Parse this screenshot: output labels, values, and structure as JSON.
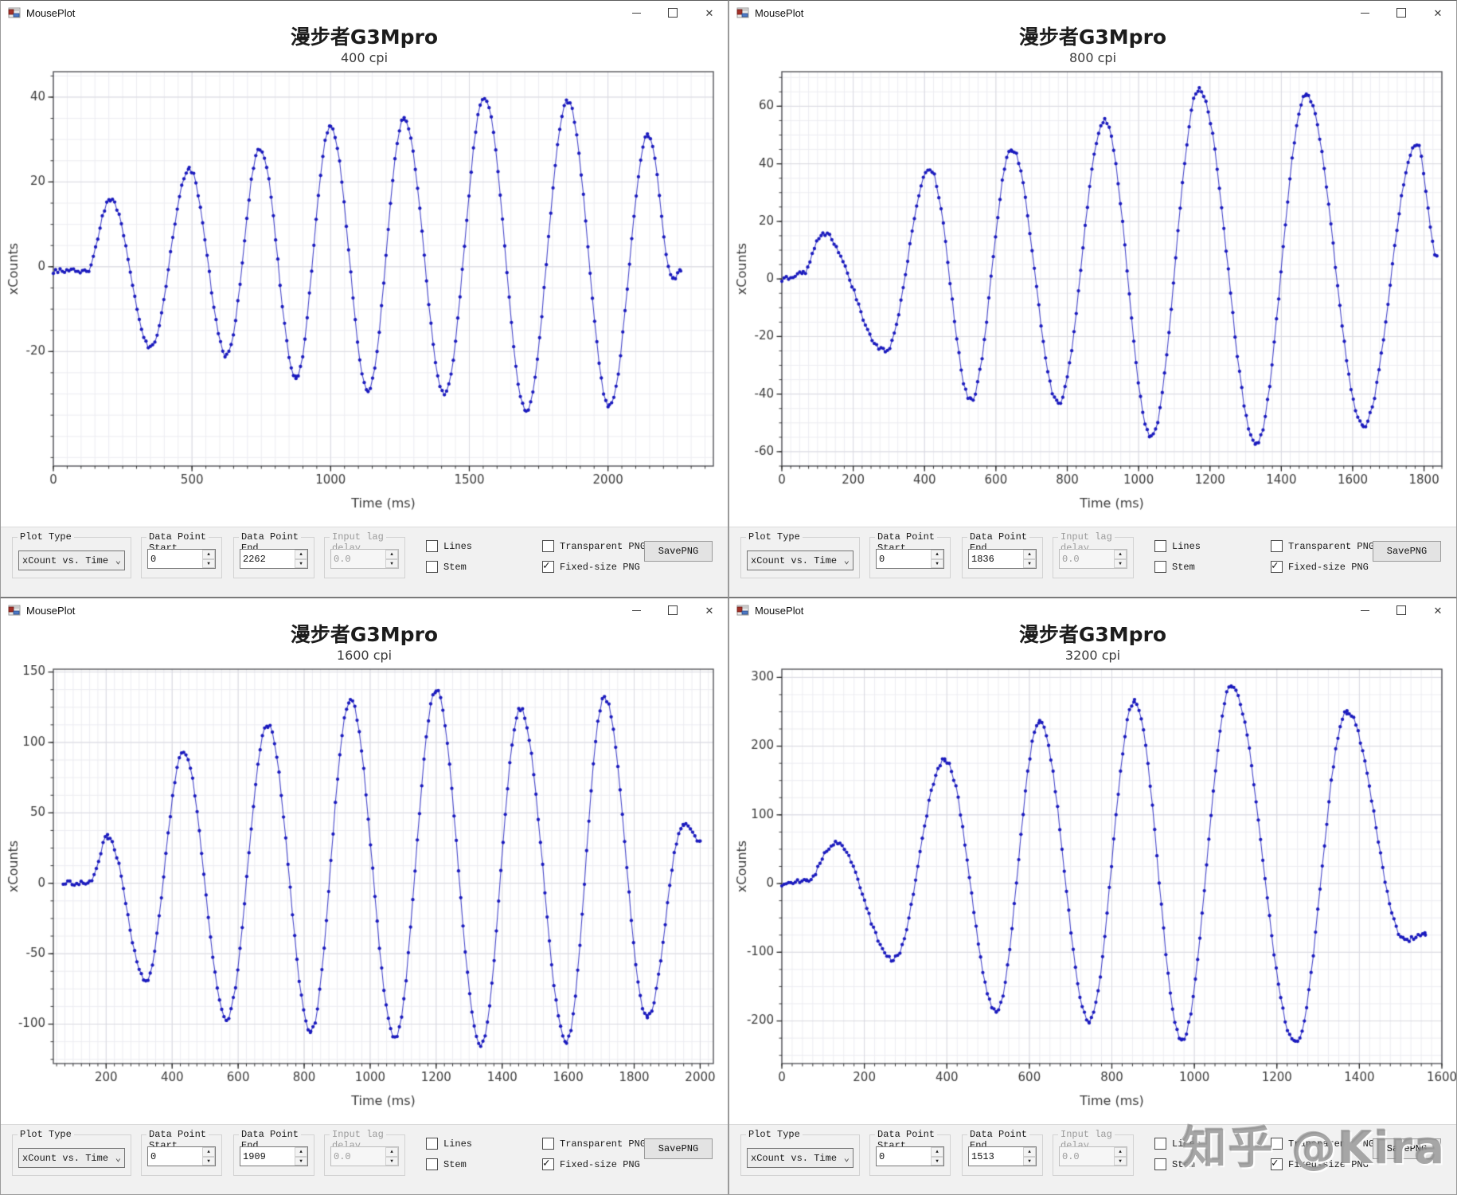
{
  "watermark": "知乎 @Kira",
  "toolbar": {
    "plot_type": {
      "label": "Plot Type",
      "value": "xCount vs. Time"
    },
    "data_point_start": {
      "label_line1": "Data Point",
      "label_line2": "Start"
    },
    "data_point_end": {
      "label_line1": "Data Point",
      "label_line2": "End"
    },
    "input_lag": {
      "label_line1": "Input lag",
      "label_line2": "delay"
    },
    "checkbox_lines": {
      "label": "Lines",
      "checked": false
    },
    "checkbox_stem": {
      "label": "Stem",
      "checked": false
    },
    "checkbox_transparent_png": {
      "label": "Transparent PNG",
      "checked": false
    },
    "checkbox_fixed_size_png": {
      "label": "Fixed-size PNG",
      "checked": true
    },
    "save_button": "SavePNG"
  },
  "windows": [
    {
      "title": "MousePlot",
      "data_point_start": "0",
      "data_point_end": "2262",
      "input_lag": "0.0"
    },
    {
      "title": "MousePlot",
      "data_point_start": "0",
      "data_point_end": "1836",
      "input_lag": "0.0"
    },
    {
      "title": "MousePlot",
      "data_point_start": "0",
      "data_point_end": "1909",
      "input_lag": "0.0"
    },
    {
      "title": "MousePlot",
      "data_point_start": "0",
      "data_point_end": "1513",
      "input_lag": "0.0"
    }
  ],
  "chart_data": [
    {
      "type": "scatter",
      "title": "漫步者G3Mpro",
      "subtitle": "400 cpi",
      "xlabel": "Time (ms)",
      "ylabel": "xCounts",
      "xlim": [
        0,
        2380
      ],
      "ylim": [
        -47,
        46
      ],
      "xticks": [
        0,
        500,
        1000,
        1500,
        2000
      ],
      "yticks": [
        -20,
        0,
        20,
        40
      ],
      "x_minor_step": 50,
      "y_minor_step": 5,
      "grid": true,
      "color": "#1b1bbe",
      "series_extrema": [
        [
          0,
          -1
        ],
        [
          120,
          -1
        ],
        [
          205,
          16
        ],
        [
          350,
          -19
        ],
        [
          490,
          23
        ],
        [
          625,
          -21
        ],
        [
          745,
          28
        ],
        [
          875,
          -26
        ],
        [
          1000,
          33
        ],
        [
          1135,
          -29
        ],
        [
          1265,
          35
        ],
        [
          1410,
          -30
        ],
        [
          1555,
          40
        ],
        [
          1705,
          -34
        ],
        [
          1855,
          39
        ],
        [
          2005,
          -33
        ],
        [
          2145,
          31
        ],
        [
          2235,
          -3
        ],
        [
          2262,
          -1
        ]
      ]
    },
    {
      "type": "scatter",
      "title": "漫步者G3Mpro",
      "subtitle": "800 cpi",
      "xlabel": "Time (ms)",
      "ylabel": "xCounts",
      "xlim": [
        0,
        1850
      ],
      "ylim": [
        -65,
        72
      ],
      "xticks": [
        0,
        200,
        400,
        600,
        800,
        1000,
        1200,
        1400,
        1600,
        1800
      ],
      "yticks": [
        -60,
        -40,
        -20,
        0,
        20,
        40,
        60
      ],
      "x_minor_step": 25,
      "y_minor_step": 5,
      "grid": true,
      "color": "#1b1bbe",
      "series_extrema": [
        [
          0,
          0
        ],
        [
          60,
          2
        ],
        [
          115,
          16
        ],
        [
          290,
          -25
        ],
        [
          415,
          38
        ],
        [
          530,
          -42
        ],
        [
          645,
          45
        ],
        [
          775,
          -43
        ],
        [
          905,
          55
        ],
        [
          1035,
          -55
        ],
        [
          1170,
          66
        ],
        [
          1330,
          -57
        ],
        [
          1470,
          64
        ],
        [
          1630,
          -51
        ],
        [
          1780,
          47
        ],
        [
          1836,
          8
        ]
      ]
    },
    {
      "type": "scatter",
      "title": "漫步者G3Mpro",
      "subtitle": "1600 cpi",
      "xlabel": "Time (ms)",
      "ylabel": "xCounts",
      "xlim": [
        40,
        2040
      ],
      "ylim": [
        -128,
        152
      ],
      "xticks": [
        200,
        400,
        600,
        800,
        1000,
        1200,
        1400,
        1600,
        1800,
        2000
      ],
      "yticks": [
        -100,
        -50,
        0,
        50,
        100,
        150
      ],
      "x_minor_step": 25,
      "y_minor_step": 12.5,
      "grid": true,
      "color": "#1b1bbe",
      "series_extrema": [
        [
          70,
          0
        ],
        [
          150,
          0
        ],
        [
          205,
          33
        ],
        [
          320,
          -69
        ],
        [
          435,
          93
        ],
        [
          565,
          -96
        ],
        [
          690,
          112
        ],
        [
          820,
          -105
        ],
        [
          940,
          130
        ],
        [
          1075,
          -110
        ],
        [
          1200,
          137
        ],
        [
          1335,
          -115
        ],
        [
          1455,
          124
        ],
        [
          1595,
          -112
        ],
        [
          1710,
          132
        ],
        [
          1840,
          -95
        ],
        [
          1950,
          42
        ],
        [
          2000,
          30
        ]
      ]
    },
    {
      "type": "scatter",
      "title": "漫步者G3Mpro",
      "subtitle": "3200 cpi",
      "xlabel": "Time (ms)",
      "ylabel": "xCounts",
      "xlim": [
        0,
        1600
      ],
      "ylim": [
        -262,
        312
      ],
      "xticks": [
        0,
        200,
        400,
        600,
        800,
        1000,
        1200,
        1400,
        1600
      ],
      "yticks": [
        -200,
        -100,
        0,
        100,
        200,
        300
      ],
      "x_minor_step": 25,
      "y_minor_step": 25,
      "grid": true,
      "color": "#1b1bbe",
      "series_extrema": [
        [
          0,
          0
        ],
        [
          60,
          3
        ],
        [
          130,
          60
        ],
        [
          270,
          -110
        ],
        [
          395,
          180
        ],
        [
          520,
          -185
        ],
        [
          625,
          235
        ],
        [
          745,
          -200
        ],
        [
          855,
          265
        ],
        [
          970,
          -228
        ],
        [
          1090,
          288
        ],
        [
          1245,
          -232
        ],
        [
          1370,
          250
        ],
        [
          1510,
          -82
        ],
        [
          1560,
          -75
        ]
      ]
    }
  ]
}
